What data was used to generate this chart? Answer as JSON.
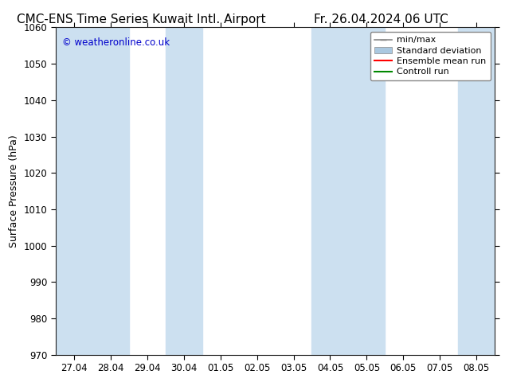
{
  "title_left": "CMC-ENS Time Series Kuwait Intl. Airport",
  "title_right": "Fr. 26.04.2024 06 UTC",
  "ylabel": "Surface Pressure (hPa)",
  "ylim": [
    970,
    1060
  ],
  "yticks": [
    970,
    980,
    990,
    1000,
    1010,
    1020,
    1030,
    1040,
    1050,
    1060
  ],
  "xtick_labels": [
    "27.04",
    "28.04",
    "29.04",
    "30.04",
    "01.05",
    "02.05",
    "03.05",
    "04.05",
    "05.05",
    "06.05",
    "07.05",
    "08.05"
  ],
  "watermark": "© weatheronline.co.uk",
  "watermark_color": "#0000cc",
  "background_color": "#ffffff",
  "plot_bg_color": "#ffffff",
  "shaded_band_color": "#cce0f0",
  "shaded_columns_x": [
    0,
    1,
    3,
    7,
    8,
    11
  ],
  "legend_entries": [
    "min/max",
    "Standard deviation",
    "Ensemble mean run",
    "Controll run"
  ],
  "legend_line_colors": [
    "#888888",
    "#aac8e0",
    "#ff0000",
    "#008800"
  ],
  "title_fontsize": 11,
  "tick_fontsize": 8.5,
  "label_fontsize": 9,
  "watermark_fontsize": 8.5,
  "legend_fontsize": 8
}
